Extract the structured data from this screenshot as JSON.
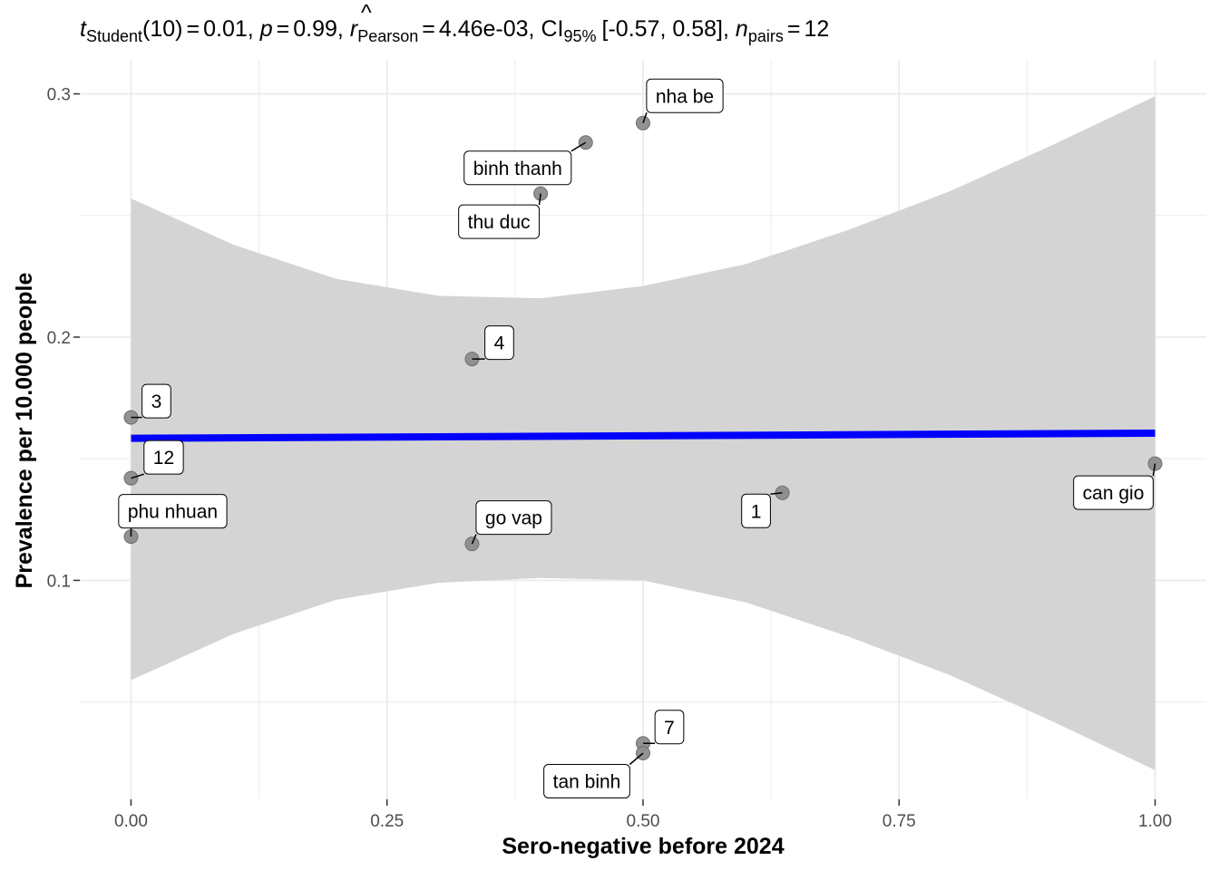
{
  "chart_data": {
    "type": "scatter",
    "subtitle": {
      "t_symbol": "t",
      "t_sub": "Student",
      "t_df": "(10)",
      "eq": "=",
      "t_value": "0.01",
      "comma": ",",
      "p_symbol": "p",
      "p_value": "0.99",
      "r_symbol": "r",
      "r_hat": "^",
      "r_sub": "Pearson",
      "r_value": "4.46e-03",
      "ci_symbol": "CI",
      "ci_sub": "95%",
      "ci_value": "[-0.57, 0.58]",
      "n_symbol": "n",
      "n_sub": "pairs",
      "n_value": "12"
    },
    "xlabel": "Sero-negative before 2024",
    "ylabel": "Prevalence per 10.000 people",
    "xlim": [
      -0.05,
      1.05
    ],
    "ylim": [
      0.01,
      0.314
    ],
    "x_ticks": [
      0.0,
      0.25,
      0.5,
      0.75,
      1.0
    ],
    "x_tick_labels": [
      "0.00",
      "0.25",
      "0.50",
      "0.75",
      "1.00"
    ],
    "y_ticks": [
      0.1,
      0.2,
      0.3
    ],
    "y_tick_labels": [
      "0.1",
      "0.2",
      "0.3"
    ],
    "grid": true,
    "points": [
      {
        "label": "nha be",
        "x": 0.5,
        "y": 0.288
      },
      {
        "label": "binh thanh",
        "x": 0.444,
        "y": 0.28
      },
      {
        "label": "thu duc",
        "x": 0.4,
        "y": 0.259
      },
      {
        "label": "4",
        "x": 0.333,
        "y": 0.191
      },
      {
        "label": "3",
        "x": 0.0,
        "y": 0.167
      },
      {
        "label": "12",
        "x": 0.0,
        "y": 0.142
      },
      {
        "label": "can gio",
        "x": 1.0,
        "y": 0.148
      },
      {
        "label": "1",
        "x": 0.636,
        "y": 0.136
      },
      {
        "label": "phu nhuan",
        "x": 0.0,
        "y": 0.118
      },
      {
        "label": "go vap",
        "x": 0.333,
        "y": 0.115
      },
      {
        "label": "7",
        "x": 0.5,
        "y": 0.033
      },
      {
        "label": "tan binh",
        "x": 0.5,
        "y": 0.029
      }
    ],
    "fit_line": {
      "x": [
        0.0,
        1.0
      ],
      "y": [
        0.1584,
        0.1605
      ]
    },
    "confidence_band": {
      "x": [
        0.0,
        0.1,
        0.2,
        0.3,
        0.4,
        0.5,
        0.6,
        0.7,
        0.8,
        0.9,
        1.0
      ],
      "upper": [
        0.257,
        0.238,
        0.224,
        0.217,
        0.216,
        0.221,
        0.23,
        0.244,
        0.26,
        0.279,
        0.299
      ],
      "lower": [
        0.059,
        0.078,
        0.092,
        0.099,
        0.101,
        0.1,
        0.091,
        0.077,
        0.061,
        0.042,
        0.022
      ]
    },
    "colors": {
      "fit": "#0000ff",
      "band": "#d4d4d4",
      "point": "#8c8c8c",
      "grid": "#ebebeb"
    }
  }
}
